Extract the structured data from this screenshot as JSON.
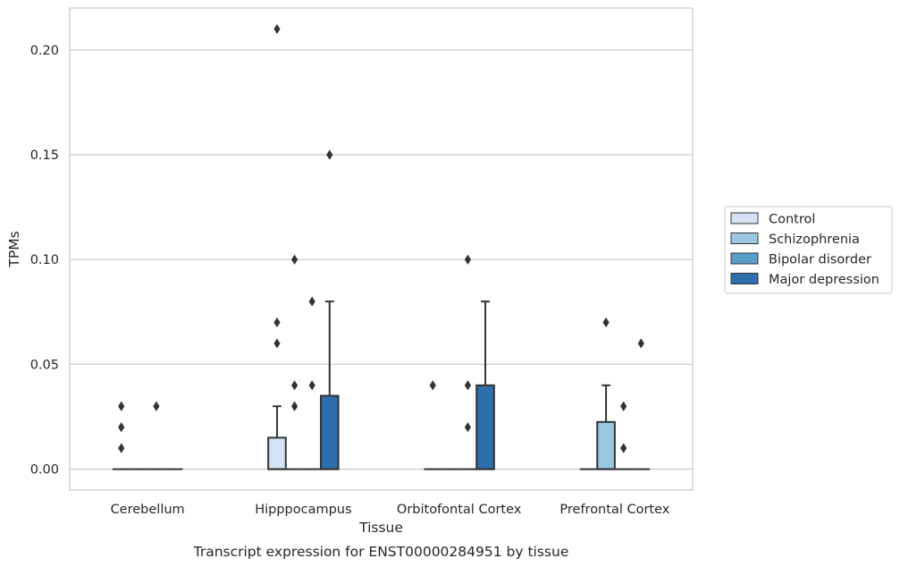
{
  "chart_data": {
    "type": "box",
    "caption": "Transcript expression for ENST00000284951 by tissue",
    "xlabel": "Tissue",
    "ylabel": "TPMs",
    "ylim": [
      -0.01,
      0.22
    ],
    "yticks": [
      0.0,
      0.05,
      0.1,
      0.15,
      0.2
    ],
    "ytick_labels": [
      "0.00",
      "0.05",
      "0.10",
      "0.15",
      "0.20"
    ],
    "grid": "horizontal",
    "legend_position": "right",
    "categories": [
      "Cerebellum",
      "Hipppocampus",
      "Orbitofontal Cortex",
      "Prefrontal Cortex"
    ],
    "series": [
      {
        "name": "Control",
        "color": "#d3e3f3",
        "boxes": [
          {
            "q1": 0,
            "median": 0,
            "q3": 0,
            "whisker_low": 0,
            "whisker_high": 0,
            "outliers": [
              0.01,
              0.02,
              0.03
            ]
          },
          {
            "q1": 0,
            "median": 0,
            "q3": 0.015,
            "whisker_low": 0,
            "whisker_high": 0.03,
            "outliers": [
              0.06,
              0.07,
              0.21
            ]
          },
          {
            "q1": 0,
            "median": 0,
            "q3": 0,
            "whisker_low": 0,
            "whisker_high": 0,
            "outliers": [
              0.04
            ]
          },
          {
            "q1": 0,
            "median": 0,
            "q3": 0,
            "whisker_low": 0,
            "whisker_high": 0,
            "outliers": []
          }
        ]
      },
      {
        "name": "Schizophrenia",
        "color": "#9ac8e0",
        "boxes": [
          {
            "q1": 0,
            "median": 0,
            "q3": 0,
            "whisker_low": 0,
            "whisker_high": 0,
            "outliers": []
          },
          {
            "q1": 0,
            "median": 0,
            "q3": 0,
            "whisker_low": 0,
            "whisker_high": 0,
            "outliers": [
              0.03,
              0.04,
              0.1
            ]
          },
          {
            "q1": 0,
            "median": 0,
            "q3": 0,
            "whisker_low": 0,
            "whisker_high": 0,
            "outliers": []
          },
          {
            "q1": 0,
            "median": 0,
            "q3": 0.0225,
            "whisker_low": 0,
            "whisker_high": 0.04,
            "outliers": [
              0.07
            ]
          }
        ]
      },
      {
        "name": "Bipolar disorder",
        "color": "#5a9ec9",
        "boxes": [
          {
            "q1": 0,
            "median": 0,
            "q3": 0,
            "whisker_low": 0,
            "whisker_high": 0,
            "outliers": [
              0.03
            ]
          },
          {
            "q1": 0,
            "median": 0,
            "q3": 0,
            "whisker_low": 0,
            "whisker_high": 0,
            "outliers": [
              0.04,
              0.08
            ]
          },
          {
            "q1": 0,
            "median": 0,
            "q3": 0,
            "whisker_low": 0,
            "whisker_high": 0,
            "outliers": [
              0.02,
              0.04,
              0.1
            ]
          },
          {
            "q1": 0,
            "median": 0,
            "q3": 0,
            "whisker_low": 0,
            "whisker_high": 0,
            "outliers": [
              0.01,
              0.03
            ]
          }
        ]
      },
      {
        "name": "Major depression",
        "color": "#2d6fac",
        "boxes": [
          {
            "q1": 0,
            "median": 0,
            "q3": 0,
            "whisker_low": 0,
            "whisker_high": 0,
            "outliers": []
          },
          {
            "q1": 0,
            "median": 0,
            "q3": 0.035,
            "whisker_low": 0,
            "whisker_high": 0.08,
            "outliers": [
              0.15
            ]
          },
          {
            "q1": 0,
            "median": 0,
            "q3": 0.04,
            "whisker_low": 0,
            "whisker_high": 0.08,
            "outliers": []
          },
          {
            "q1": 0,
            "median": 0,
            "q3": 0,
            "whisker_low": 0,
            "whisker_high": 0,
            "outliers": [
              0.06
            ]
          }
        ]
      }
    ]
  }
}
